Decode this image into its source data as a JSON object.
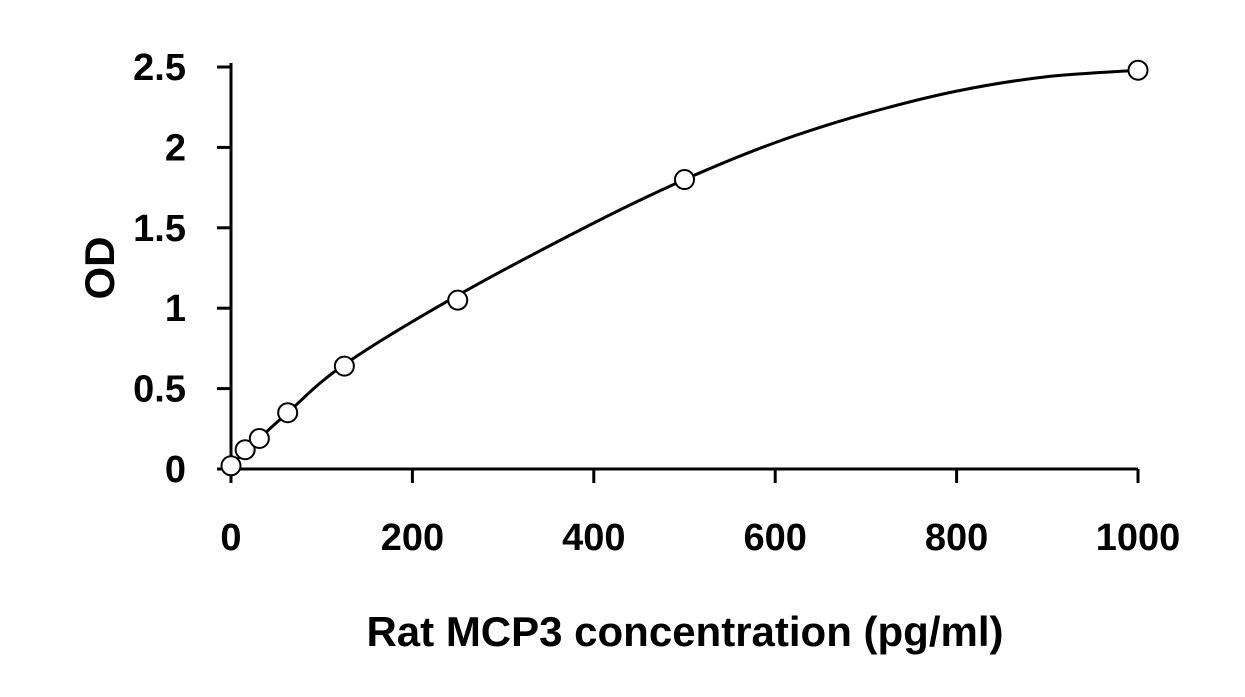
{
  "chart_data": {
    "type": "scatter",
    "title": "",
    "xlabel": "Rat MCP3 concentration (pg/ml)",
    "ylabel": "OD",
    "xlim": [
      0,
      1000
    ],
    "ylim": [
      0,
      2.5
    ],
    "xticks": [
      0,
      200,
      400,
      600,
      800,
      1000
    ],
    "xtick_labels": [
      "0",
      "200",
      "400",
      "600",
      "800",
      "1000"
    ],
    "yticks": [
      0,
      0.5,
      1,
      1.5,
      2,
      2.5
    ],
    "ytick_labels": [
      "0",
      "0.5",
      "1",
      "1.5",
      "2",
      "2.5"
    ],
    "grid": false,
    "legend": "none",
    "series": [
      {
        "marker": "open-circle",
        "x": [
          0,
          15.6,
          31.25,
          62.5,
          125,
          250,
          500,
          1000
        ],
        "y": [
          0.02,
          0.12,
          0.19,
          0.35,
          0.64,
          1.05,
          1.8,
          2.48
        ]
      }
    ],
    "fit_curve": {
      "x": [
        0,
        15.6,
        31.25,
        62.5,
        125,
        250,
        400,
        500,
        600,
        700,
        800,
        900,
        1000
      ],
      "y": [
        0.02,
        0.11,
        0.19,
        0.35,
        0.65,
        1.08,
        1.53,
        1.8,
        2.03,
        2.21,
        2.35,
        2.44,
        2.48
      ]
    }
  }
}
